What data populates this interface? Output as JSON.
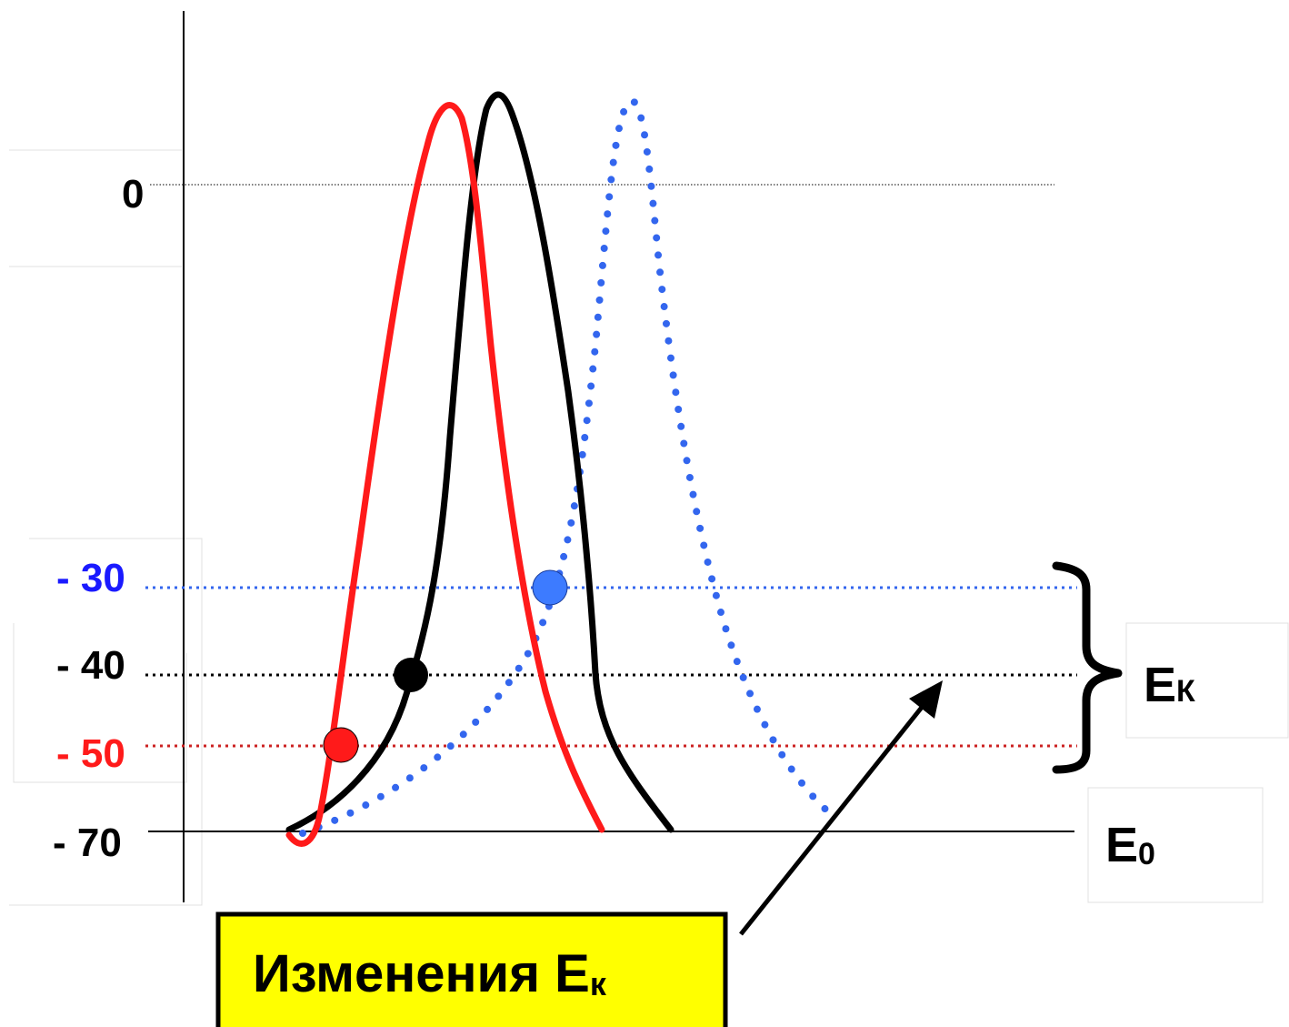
{
  "colors": {
    "background": "#ffffff",
    "axis": "#000000",
    "red": "#ff1a1a",
    "black": "#000000",
    "blue": "#3366ee",
    "blue_label": "#1a1aff",
    "callout_fill": "#ffff00"
  },
  "ticks": {
    "zero": "0",
    "m30": "- 30",
    "m40": "- 40",
    "m50": "- 50",
    "m70": "- 70"
  },
  "labels": {
    "ek_main": "E",
    "ek_sub": "К",
    "e0_main": "E",
    "e0_sub": "0"
  },
  "callout": {
    "text_main": "Изменения  E",
    "text_sub": "к"
  },
  "curves": [
    {
      "name": "red-action-potential",
      "color": "red",
      "style": "solid",
      "threshold": -50
    },
    {
      "name": "black-action-potential",
      "color": "black",
      "style": "solid",
      "threshold": -40
    },
    {
      "name": "blue-action-potential",
      "color": "blue",
      "style": "dotted",
      "threshold": -30
    }
  ]
}
